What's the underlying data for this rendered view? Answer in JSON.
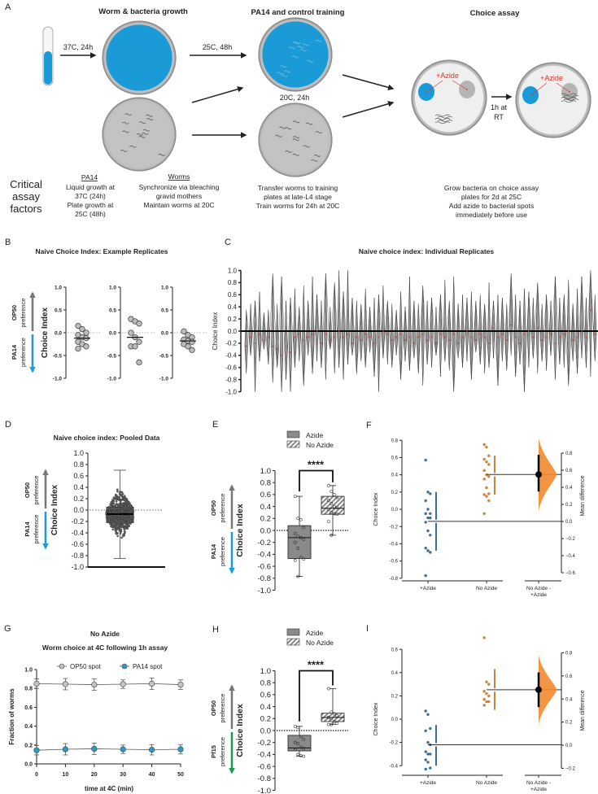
{
  "panel_a": {
    "label": "A",
    "titles": {
      "growth": "Worm & bacteria growth",
      "training": "PA14 and control training",
      "choice": "Choice assay"
    },
    "arrow_labels": {
      "growth": "37C, 24h",
      "training_pa14": "25C, 48h",
      "training_control": "20C, 24h",
      "assay_1": "1h at",
      "assay_2": "RT"
    },
    "azide_label": "+Azide",
    "factors_title": [
      "Critical",
      "assay",
      "factors"
    ],
    "factors": {
      "pa14_heading": "PA14",
      "pa14": [
        "Liquid growth at",
        "37C (24h)",
        "Plate growth at",
        "25C (48h)"
      ],
      "worms_heading": "Worms",
      "worms": [
        "Synchronize via bleaching",
        "gravid mothers",
        "Maintain worms at 20C"
      ],
      "training": [
        "Transfer worms to training",
        "plates at late-L4 stage",
        "Train worms for 24h at 20C"
      ],
      "choice": [
        "Grow bacteria on choice assay",
        "plates for 2d at 25C",
        "Add azide to bacterial spots",
        "immediately before use"
      ]
    },
    "colors": {
      "pa14": "#1a9ad6",
      "op50": "#bdbdbd",
      "azide": "#e0302a"
    }
  },
  "pref_labels": {
    "op50": "OP50",
    "pa14": "PA14",
    "pf15": "Pf15",
    "preference": "preference",
    "choice_index": "Choice Index"
  },
  "chart_data": [
    {
      "id": "B",
      "label": "B",
      "type": "scatter",
      "title": "Naive Choice Index: Example Replicates",
      "ylabel": "Choice Index",
      "ylim": [
        -1,
        1
      ],
      "yticks": [
        "-1.0",
        "-0.5",
        "0.0",
        "0.5",
        "1.0"
      ],
      "groups": [
        {
          "values": [
            0.15,
            0.08,
            0.0,
            -0.05,
            -0.1,
            -0.12,
            -0.2,
            -0.25,
            -0.3,
            -0.35
          ],
          "mean": -0.12
        },
        {
          "values": [
            0.3,
            0.25,
            0.2,
            0.0,
            -0.1,
            -0.2,
            -0.3,
            -0.3,
            -0.65
          ],
          "mean": -0.1
        },
        {
          "values": [
            0.03,
            -0.05,
            -0.1,
            -0.15,
            -0.18,
            -0.2,
            -0.25,
            -0.3,
            -0.38
          ],
          "mean": -0.18
        }
      ]
    },
    {
      "id": "C",
      "label": "C",
      "type": "violin",
      "title": "Naive choice index: Individual Replicates",
      "ylabel": "Choice Index",
      "ylim": [
        -1,
        1
      ],
      "yticks": [
        "-1.0",
        "-0.8",
        "-0.6",
        "-0.4",
        "-0.2",
        "0.0",
        "0.2",
        "0.4",
        "0.6",
        "0.8",
        "1.0"
      ],
      "replicates_min_max_median": [
        [
          -0.7,
          0.35,
          -0.25
        ],
        [
          -0.4,
          0.45,
          -0.1
        ],
        [
          -1.0,
          0.5,
          -0.2
        ],
        [
          -0.5,
          0.65,
          -0.05
        ],
        [
          -0.3,
          0.3,
          -0.15
        ],
        [
          -0.55,
          0.35,
          -0.1
        ],
        [
          -0.85,
          0.95,
          -0.25
        ],
        [
          -0.6,
          0.45,
          -0.3
        ],
        [
          -1.0,
          0.9,
          -0.4
        ],
        [
          -0.8,
          0.5,
          -0.25
        ],
        [
          -1.0,
          0.55,
          -0.35
        ],
        [
          -0.6,
          0.7,
          -0.1
        ],
        [
          -0.5,
          0.4,
          -0.05
        ],
        [
          -0.9,
          0.75,
          -0.15
        ],
        [
          -0.4,
          0.5,
          -0.1
        ],
        [
          -0.7,
          0.9,
          -0.05
        ],
        [
          -0.5,
          0.6,
          0.0
        ],
        [
          -0.6,
          0.5,
          -0.2
        ],
        [
          -0.8,
          0.95,
          -0.05
        ],
        [
          -0.3,
          0.4,
          -0.15
        ],
        [
          -0.7,
          0.8,
          -0.1
        ],
        [
          -0.6,
          1.0,
          0.0
        ],
        [
          -0.8,
          0.65,
          -0.1
        ],
        [
          -0.55,
          1.0,
          -0.05
        ],
        [
          -0.4,
          0.55,
          -0.2
        ],
        [
          -0.7,
          0.5,
          -0.1
        ],
        [
          -0.5,
          0.45,
          -0.15
        ],
        [
          -0.6,
          0.7,
          -0.05
        ],
        [
          -0.35,
          0.4,
          -0.1
        ],
        [
          -0.75,
          0.55,
          -0.2
        ],
        [
          -1.0,
          0.6,
          -0.1
        ],
        [
          -0.45,
          0.75,
          0.0
        ],
        [
          -0.55,
          0.5,
          -0.05
        ],
        [
          -0.6,
          0.45,
          -0.15
        ],
        [
          -0.4,
          0.35,
          -0.1
        ],
        [
          -0.8,
          0.65,
          -0.05
        ],
        [
          -0.5,
          0.4,
          -0.15
        ],
        [
          -0.65,
          0.9,
          -0.1
        ],
        [
          -0.45,
          0.5,
          -0.2
        ],
        [
          -0.7,
          0.45,
          -0.1
        ],
        [
          -0.9,
          0.75,
          -0.05
        ],
        [
          -0.55,
          0.5,
          -0.15
        ],
        [
          -0.6,
          0.55,
          -0.1
        ],
        [
          -0.4,
          0.4,
          -0.2
        ],
        [
          -0.75,
          0.6,
          -0.05
        ],
        [
          -0.5,
          0.85,
          -0.1
        ],
        [
          -0.65,
          0.5,
          -0.15
        ],
        [
          -1.0,
          0.9,
          -0.05
        ],
        [
          -0.45,
          0.45,
          -0.2
        ],
        [
          -0.6,
          0.6,
          -0.1
        ],
        [
          -0.5,
          0.55,
          0.0
        ],
        [
          -0.8,
          0.65,
          -0.1
        ],
        [
          -0.35,
          0.5,
          -0.15
        ],
        [
          -0.55,
          0.6,
          -0.05
        ],
        [
          -0.7,
          0.45,
          -0.1
        ],
        [
          -0.6,
          0.8,
          -0.2
        ],
        [
          -0.45,
          0.5,
          0.05
        ],
        [
          -0.9,
          0.6,
          -0.1
        ],
        [
          -0.5,
          0.55,
          -0.05
        ],
        [
          -0.65,
          0.45,
          -0.15
        ],
        [
          -0.4,
          0.95,
          0.1
        ],
        [
          -0.75,
          0.6,
          -0.1
        ],
        [
          -0.55,
          0.5,
          -0.2
        ],
        [
          -1.0,
          0.7,
          -0.05
        ],
        [
          -0.6,
          0.65,
          0.0
        ],
        [
          -0.45,
          0.55,
          -0.1
        ],
        [
          -0.7,
          0.8,
          0.05
        ],
        [
          -0.5,
          0.45,
          -0.15
        ],
        [
          -0.65,
          0.6,
          -0.1
        ],
        [
          -0.4,
          0.5,
          -0.05
        ],
        [
          -0.8,
          0.9,
          -0.2
        ],
        [
          -0.55,
          0.55,
          -0.1
        ],
        [
          -0.6,
          0.6,
          -0.05
        ],
        [
          -0.9,
          0.85,
          0.0
        ],
        [
          -0.5,
          0.45,
          -0.15
        ],
        [
          -0.7,
          0.7,
          -0.1
        ],
        [
          -0.45,
          0.9,
          0.0
        ],
        [
          -0.6,
          0.55,
          -0.1
        ],
        [
          -0.75,
          1.0,
          0.35
        ],
        [
          -0.5,
          0.6,
          -0.05
        ]
      ]
    },
    {
      "id": "D",
      "label": "D",
      "type": "box",
      "title": "Naive choice index: Pooled Data",
      "ylabel": "Choice Index",
      "ylim": [
        -1,
        1
      ],
      "yticks": [
        "-1.0",
        "-0.8",
        "-0.6",
        "-0.4",
        "-0.2",
        "0.0",
        "0.2",
        "0.4",
        "0.6",
        "0.8",
        "1.0"
      ],
      "box": {
        "min": -0.85,
        "q1": -0.22,
        "median": -0.07,
        "q3": 0.05,
        "max": 0.7
      }
    },
    {
      "id": "E",
      "label": "E",
      "type": "box",
      "ylabel": "Choice Index",
      "ylim": [
        -1,
        1
      ],
      "yticks": [
        "-1.0",
        "-0.8",
        "-0.6",
        "-0.4",
        "-0.2",
        "0.0",
        "0.2",
        "0.4",
        "0.6",
        "0.8",
        "1.0"
      ],
      "legend": [
        "Azide",
        "No Azide"
      ],
      "significance": "****",
      "series": [
        {
          "name": "Azide",
          "box": {
            "min": -0.77,
            "q1": -0.47,
            "median": -0.12,
            "q3": 0.08,
            "max": 0.57
          },
          "values": [
            0.57,
            0.2,
            0.18,
            0.05,
            -0.05,
            -0.1,
            -0.12,
            -0.15,
            -0.2,
            -0.3,
            -0.45,
            -0.48,
            -0.5,
            -0.77
          ]
        },
        {
          "name": "No Azide",
          "box": {
            "min": -0.08,
            "q1": 0.27,
            "median": 0.37,
            "q3": 0.57,
            "max": 0.75
          },
          "values": [
            0.75,
            0.65,
            0.6,
            0.55,
            0.5,
            0.45,
            0.4,
            0.38,
            0.35,
            0.3,
            0.28,
            0.27,
            0.15,
            -0.08
          ]
        }
      ]
    },
    {
      "id": "F",
      "label": "F",
      "type": "estimation",
      "ylabel": "Choice Index",
      "ylabel_right": "Mean difference",
      "yticks": [
        "-0.8",
        "-0.6",
        "-0.4",
        "-0.2",
        "0.0",
        "0.2",
        "0.4",
        "0.6",
        "0.8"
      ],
      "yticks_right": [
        "−0.6",
        "−0.4",
        "−0.2",
        "0.0",
        "0.2",
        "0.4",
        "0.6",
        "0.8"
      ],
      "categories": [
        "+Azide",
        "No Azide",
        "No Azide -",
        "+Azide"
      ],
      "groups": [
        {
          "values": [
            0.57,
            0.2,
            0.18,
            0.1,
            0.0,
            -0.05,
            -0.05,
            -0.1,
            -0.1,
            -0.15,
            -0.25,
            -0.3,
            -0.45,
            -0.48,
            -0.5,
            -0.77
          ],
          "mean": -0.14,
          "sd_low": -0.48,
          "sd_high": 0.2
        },
        {
          "values": [
            0.75,
            0.72,
            0.62,
            0.58,
            0.55,
            0.52,
            0.45,
            0.4,
            0.38,
            0.35,
            0.25,
            0.18,
            0.17,
            0.15,
            0.1,
            -0.05
          ],
          "mean": 0.4,
          "sd_low": 0.17,
          "sd_high": 0.62
        }
      ],
      "mean_difference": 0.55,
      "ci": [
        0.35,
        0.78
      ]
    },
    {
      "id": "G",
      "label": "G",
      "type": "line",
      "title": [
        "No Azide",
        "Worm choice at 4C following 1h assay"
      ],
      "xlabel": "time at 4C (min)",
      "ylabel": "Fraction of worms",
      "xticks": [
        "0",
        "10",
        "20",
        "30",
        "40",
        "50"
      ],
      "yticks": [
        "0.0",
        "0.2",
        "0.4",
        "0.6",
        "0.8",
        "1.0"
      ],
      "x": [
        0,
        10,
        20,
        30,
        40,
        50
      ],
      "legend_position": "top",
      "series": [
        {
          "name": "OP50 spot",
          "color": "#c4c4c4",
          "values": [
            0.85,
            0.845,
            0.84,
            0.845,
            0.85,
            0.84
          ],
          "error": [
            0.05,
            0.06,
            0.06,
            0.045,
            0.06,
            0.05
          ]
        },
        {
          "name": "PA14 spot",
          "color": "#2a9bc4",
          "values": [
            0.145,
            0.155,
            0.16,
            0.155,
            0.15,
            0.155
          ],
          "error": [
            0.05,
            0.06,
            0.06,
            0.045,
            0.055,
            0.05
          ]
        }
      ]
    },
    {
      "id": "H",
      "label": "H",
      "type": "box",
      "ylabel": "Choice Index",
      "ylim": [
        -1,
        1
      ],
      "yticks": [
        "-1.0",
        "-0.8",
        "-0.6",
        "-0.4",
        "-0.2",
        "0.0",
        "0.2",
        "0.4",
        "0.6",
        "0.8",
        "1.0"
      ],
      "legend": [
        "Azide",
        "No Azide"
      ],
      "significance": "****",
      "series": [
        {
          "name": "Azide",
          "box": {
            "min": -0.43,
            "q1": -0.34,
            "median": -0.29,
            "q3": -0.08,
            "max": 0.07
          },
          "values": [
            0.07,
            0.05,
            -0.1,
            -0.15,
            -0.2,
            -0.22,
            -0.28,
            -0.3,
            -0.32,
            -0.4,
            -0.42,
            -0.43
          ]
        },
        {
          "name": "No Azide",
          "box": {
            "min": 0.1,
            "q1": 0.15,
            "median": 0.22,
            "q3": 0.29,
            "max": 0.7
          },
          "values": [
            0.7,
            0.31,
            0.28,
            0.25,
            0.22,
            0.2,
            0.15,
            0.12,
            0.1,
            0.1
          ]
        }
      ]
    },
    {
      "id": "I",
      "label": "I",
      "type": "estimation",
      "ylabel": "Choice Index",
      "ylabel_right": "Mean difference",
      "yticks": [
        "-0.4",
        "-0.2",
        "0.0",
        "0.2",
        "0.4",
        "0.6"
      ],
      "yticks_right": [
        "−0.2",
        "0.0",
        "0.2",
        "0.4",
        "0.6",
        "0.8"
      ],
      "categories": [
        "+Azide",
        "No Azide",
        "No Azide -",
        "+Azide"
      ],
      "groups": [
        {
          "values": [
            0.07,
            0.04,
            -0.08,
            -0.1,
            -0.2,
            -0.22,
            -0.28,
            -0.3,
            -0.3,
            -0.35,
            -0.37,
            -0.42,
            -0.43
          ],
          "mean": -0.22,
          "sd_low": -0.4,
          "sd_high": -0.05
        },
        {
          "values": [
            0.7,
            0.32,
            0.3,
            0.24,
            0.22,
            0.2,
            0.17,
            0.15,
            0.15,
            0.12
          ],
          "mean": 0.25,
          "sd_low": 0.08,
          "sd_high": 0.43
        }
      ],
      "mean_difference": 0.48,
      "ci": [
        0.33,
        0.63
      ]
    }
  ]
}
